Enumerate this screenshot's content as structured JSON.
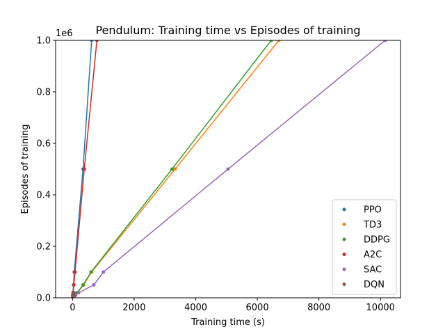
{
  "chart_data": {
    "type": "line",
    "title": "Pendulum: Training time vs Episodes of training",
    "xlabel": "Training time (s)",
    "ylabel": "Episodes of training",
    "y_scale_label": "1e6",
    "xlim": [
      -550,
      10650
    ],
    "ylim": [
      0,
      1000000
    ],
    "x_ticks": [
      0,
      2000,
      4000,
      6000,
      8000,
      10000
    ],
    "x_tick_labels": [
      "0",
      "2000",
      "4000",
      "6000",
      "8000",
      "10000"
    ],
    "y_ticks": [
      0,
      200000,
      400000,
      600000,
      800000,
      1000000
    ],
    "y_tick_labels": [
      "0.0",
      "0.2",
      "0.4",
      "0.6",
      "0.8",
      "1.0"
    ],
    "legend_position": "lower-right",
    "grid": false,
    "series": [
      {
        "name": "PPO",
        "color": "#1f77b4",
        "x": [
          0,
          5,
          15,
          30,
          55,
          340,
          620
        ],
        "y": [
          0,
          10000,
          20000,
          50000,
          100000,
          500000,
          1000000
        ]
      },
      {
        "name": "TD3",
        "color": "#ff7f0e",
        "x": [
          0,
          35,
          70,
          160,
          360,
          620,
          3330,
          6700
        ],
        "y": [
          0,
          5000,
          10000,
          20000,
          50000,
          100000,
          500000,
          1000000
        ]
      },
      {
        "name": "DDPG",
        "color": "#2ca02c",
        "x": [
          0,
          35,
          65,
          150,
          340,
          600,
          3230,
          6450
        ],
        "y": [
          0,
          5000,
          10000,
          20000,
          50000,
          100000,
          500000,
          1000000
        ]
      },
      {
        "name": "A2C",
        "color": "#d62728",
        "x": [
          0,
          6,
          20,
          40,
          80,
          380,
          790
        ],
        "y": [
          0,
          10000,
          20000,
          50000,
          100000,
          500000,
          1000000
        ]
      },
      {
        "name": "SAC",
        "color": "#9467bd",
        "x": [
          0,
          55,
          100,
          200,
          690,
          1000,
          5050,
          10150
        ],
        "y": [
          0,
          5000,
          10000,
          20000,
          50000,
          100000,
          500000,
          1000000
        ]
      },
      {
        "name": "DQN",
        "color": "#8c564b",
        "x": [
          0,
          15,
          30,
          50
        ],
        "y": [
          0,
          5000,
          10000,
          20000
        ]
      }
    ]
  }
}
